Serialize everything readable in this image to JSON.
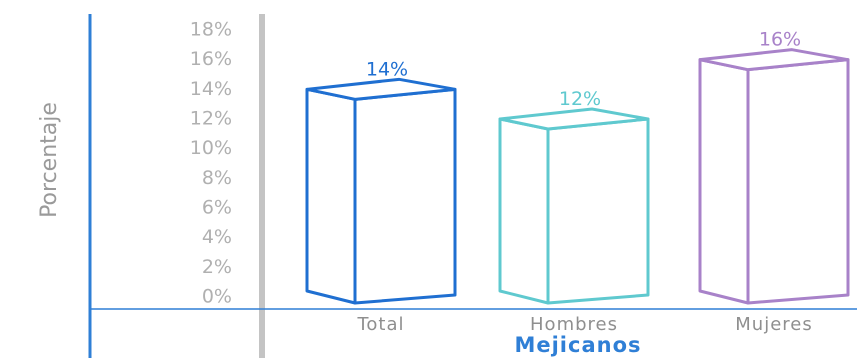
{
  "chart_data": {
    "type": "bar",
    "ylabel": "Porcentaje",
    "xlabel": "Mejicanos",
    "categories": [
      "Total",
      "Hombres",
      "Mujeres"
    ],
    "values": [
      14,
      12,
      16
    ],
    "value_labels": [
      "14%",
      "12%",
      "16%"
    ],
    "yticks": [
      "0%",
      "2%",
      "4%",
      "6%",
      "8%",
      "10%",
      "12%",
      "14%",
      "16%",
      "18%"
    ],
    "ylim": [
      0,
      18
    ],
    "colors": [
      "#1f6fd1",
      "#5fc9cf",
      "#a882c9"
    ],
    "grid": false
  }
}
